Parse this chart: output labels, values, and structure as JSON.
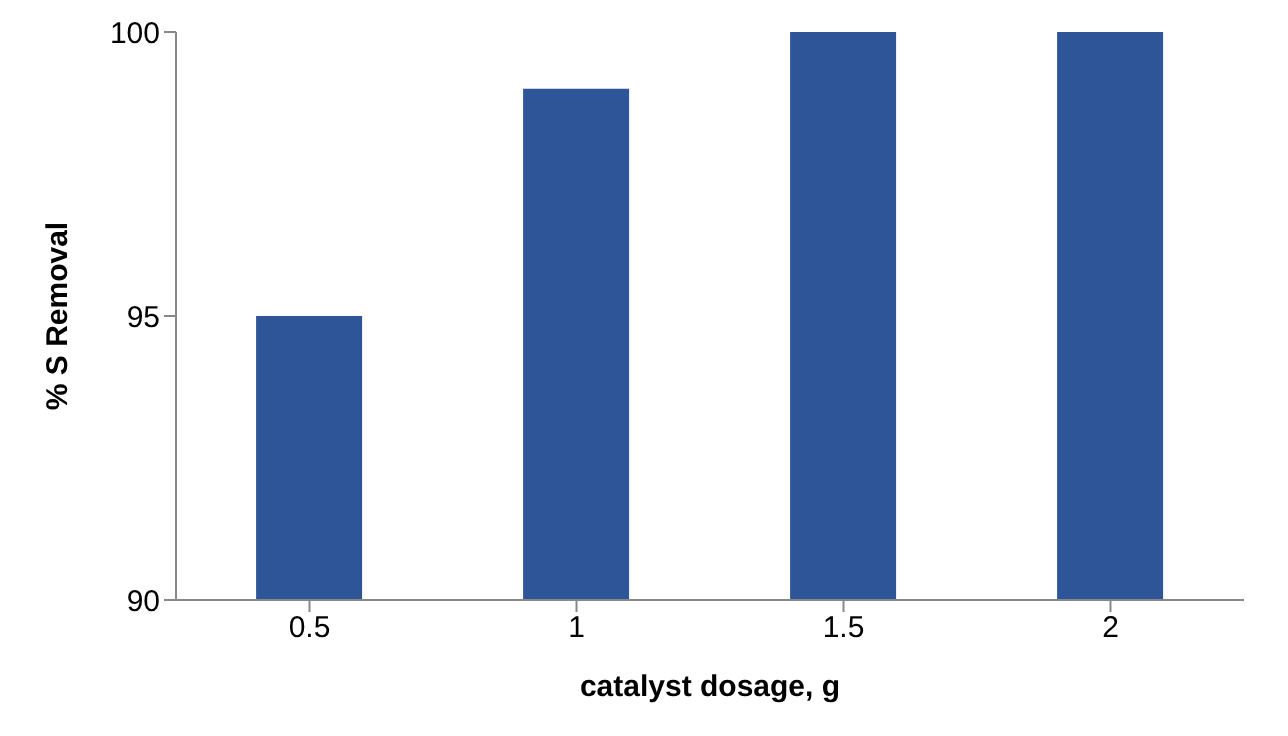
{
  "chart_data": {
    "type": "bar",
    "xlabel": "catalyst dosage, g",
    "ylabel": "% S Removal",
    "categories": [
      "0.5",
      "1",
      "1.5",
      "2"
    ],
    "values": [
      95,
      99,
      100,
      100
    ],
    "color": "#2e5597",
    "ylim": [
      90,
      100
    ],
    "yticks": [
      90,
      95,
      100
    ],
    "grid": false
  }
}
